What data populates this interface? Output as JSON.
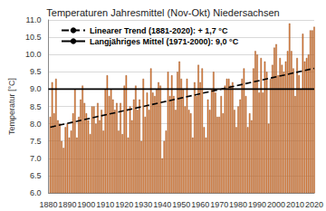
{
  "chart_data": {
    "type": "bar",
    "title": "Temperaturen Jahresmittel (Nov-Okt) Niedersachsen",
    "y_label": "Temperatur [°C]",
    "x": [
      1881,
      1882,
      1883,
      1884,
      1885,
      1886,
      1887,
      1888,
      1889,
      1890,
      1891,
      1892,
      1893,
      1894,
      1895,
      1896,
      1897,
      1898,
      1899,
      1900,
      1901,
      1902,
      1903,
      1904,
      1905,
      1906,
      1907,
      1908,
      1909,
      1910,
      1911,
      1912,
      1913,
      1914,
      1915,
      1916,
      1917,
      1918,
      1919,
      1920,
      1921,
      1922,
      1923,
      1924,
      1925,
      1926,
      1927,
      1928,
      1929,
      1930,
      1931,
      1932,
      1933,
      1934,
      1935,
      1936,
      1937,
      1938,
      1939,
      1940,
      1941,
      1942,
      1943,
      1944,
      1945,
      1946,
      1947,
      1948,
      1949,
      1950,
      1951,
      1952,
      1953,
      1954,
      1955,
      1956,
      1957,
      1958,
      1959,
      1960,
      1961,
      1962,
      1963,
      1964,
      1965,
      1966,
      1967,
      1968,
      1969,
      1970,
      1971,
      1972,
      1973,
      1974,
      1975,
      1976,
      1977,
      1978,
      1979,
      1980,
      1981,
      1982,
      1983,
      1984,
      1985,
      1986,
      1987,
      1988,
      1989,
      1990,
      1991,
      1992,
      1993,
      1994,
      1995,
      1996,
      1997,
      1998,
      1999,
      2000,
      2001,
      2002,
      2003,
      2004,
      2005,
      2006,
      2007,
      2008,
      2009,
      2010,
      2011,
      2012,
      2013,
      2014,
      2015,
      2016,
      2017,
      2018,
      2019,
      2020
    ],
    "series": [
      {
        "type": "bar",
        "color": "#e8823a",
        "values": [
          8.2,
          9.2,
          8.3,
          9.3,
          8.1,
          8.0,
          7.5,
          7.3,
          7.9,
          8.0,
          7.6,
          7.8,
          8.3,
          9.0,
          7.6,
          8.2,
          8.7,
          9.1,
          8.6,
          8.3,
          8.1,
          7.7,
          8.5,
          8.5,
          8.0,
          8.6,
          8.1,
          8.4,
          7.8,
          9.0,
          9.4,
          8.8,
          9.0,
          8.7,
          8.4,
          8.6,
          7.8,
          8.6,
          7.7,
          9.1,
          9.4,
          7.6,
          8.5,
          8.1,
          8.7,
          9.1,
          8.4,
          8.7,
          7.5,
          9.3,
          8.2,
          8.9,
          8.4,
          9.6,
          8.9,
          8.8,
          9.0,
          9.2,
          9.1,
          7.0,
          7.5,
          7.8,
          9.5,
          8.8,
          9.4,
          8.8,
          8.4,
          9.5,
          9.8,
          9.3,
          9.0,
          8.5,
          9.3,
          8.4,
          8.3,
          7.6,
          9.2,
          8.8,
          9.7,
          9.2,
          9.6,
          7.9,
          7.6,
          8.7,
          8.4,
          9.0,
          9.5,
          8.9,
          8.2,
          8.2,
          8.8,
          8.3,
          9.1,
          9.3,
          9.3,
          9.1,
          9.2,
          8.4,
          7.9,
          8.5,
          8.7,
          9.3,
          9.6,
          8.8,
          7.9,
          8.3,
          8.1,
          9.6,
          10.1,
          10.0,
          8.9,
          9.9,
          8.9,
          9.8,
          9.5,
          8.0,
          9.3,
          9.7,
          10.2,
          10.3,
          9.4,
          9.9,
          9.7,
          9.5,
          9.8,
          10.1,
          10.9,
          10.1,
          9.6,
          8.8,
          9.9,
          9.4,
          9.0,
          10.6,
          9.8,
          9.9,
          10.0,
          10.7,
          10.7,
          10.8
        ]
      },
      {
        "type": "line",
        "name": "Linearer Trend (1881-2020): + 1,7 °C",
        "color": "#000000",
        "line_style": "dashed",
        "x": [
          1881,
          2020
        ],
        "values": [
          7.9,
          9.6
        ]
      },
      {
        "type": "line",
        "name": "Langjähriges Mittel (1971-2000): 9,0 °C",
        "color": "#000000",
        "line_style": "solid",
        "x": [
          1880,
          2020
        ],
        "values": [
          9.0,
          9.0
        ]
      }
    ],
    "xlim": [
      1880,
      2020
    ],
    "xticks": [
      1880,
      1890,
      1900,
      1910,
      1920,
      1930,
      1940,
      1950,
      1960,
      1970,
      1980,
      1990,
      2000,
      2010,
      2020
    ],
    "ylim": [
      6,
      11
    ],
    "yticks": [
      {
        "value": 6,
        "label": "6.0"
      },
      {
        "value": 6.5,
        "label": "6.5"
      },
      {
        "value": 7,
        "label": "7.0"
      },
      {
        "value": 7.5,
        "label": "7.5"
      },
      {
        "value": 8,
        "label": "8.0"
      },
      {
        "value": 8.5,
        "label": "8.5"
      },
      {
        "value": 9,
        "label": "9.0"
      },
      {
        "value": 9.5,
        "label": "9.5"
      },
      {
        "value": 10,
        "label": "10.0"
      },
      {
        "value": 10.5,
        "label": "10.5"
      },
      {
        "value": 11,
        "label": "11.0"
      }
    ],
    "grid": true,
    "legend": "upper left"
  }
}
